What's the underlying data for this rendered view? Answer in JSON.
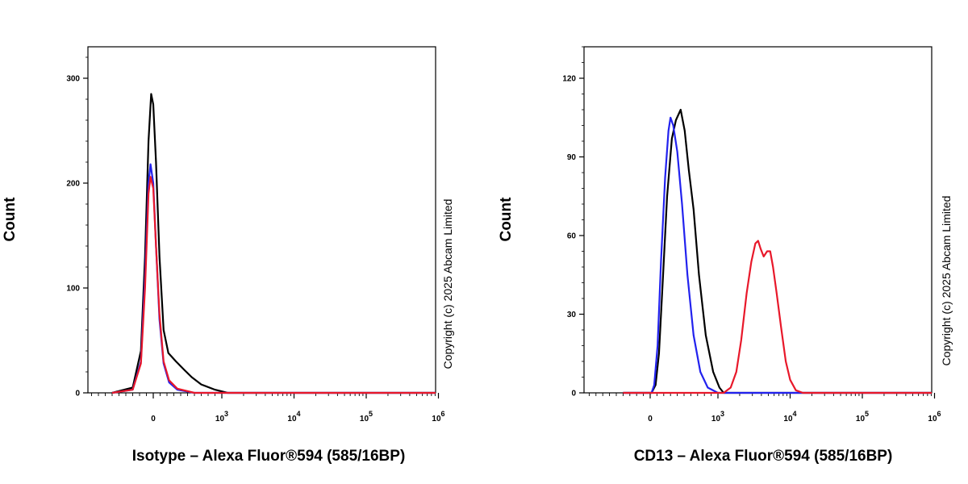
{
  "chart_data": [
    {
      "type": "line",
      "xlabel": "Isotype  – Alexa Fluor®594 (585/16BP)",
      "ylabel": "Count",
      "copyright": "Copyright (c) 2025 Abcam Limited",
      "x_scale": "biexponential",
      "y_ticks": [
        0,
        100,
        200,
        300
      ],
      "ylim": [
        0,
        330
      ],
      "x_tick_labels": [
        {
          "value": 0,
          "label": "0"
        },
        {
          "value": 1000,
          "label": "10",
          "exp": "3"
        },
        {
          "value": 10000,
          "label": "10",
          "exp": "4"
        },
        {
          "value": 100000,
          "label": "10",
          "exp": "5"
        },
        {
          "value": 1000000,
          "label": "10",
          "exp": "6"
        }
      ],
      "grid": false,
      "series": [
        {
          "color": "#000000",
          "points": [
            [
              -600,
              0
            ],
            [
              -300,
              5
            ],
            [
              -180,
              40
            ],
            [
              -120,
              130
            ],
            [
              -70,
              240
            ],
            [
              -30,
              285
            ],
            [
              0,
              275
            ],
            [
              40,
              220
            ],
            [
              90,
              130
            ],
            [
              150,
              60
            ],
            [
              220,
              38
            ],
            [
              330,
              30
            ],
            [
              450,
              22
            ],
            [
              560,
              15
            ],
            [
              700,
              8
            ],
            [
              900,
              3
            ],
            [
              1200,
              0
            ],
            [
              1000000,
              0
            ]
          ]
        },
        {
          "color": "#2222ee",
          "points": [
            [
              -600,
              0
            ],
            [
              -300,
              3
            ],
            [
              -180,
              30
            ],
            [
              -120,
              110
            ],
            [
              -70,
              200
            ],
            [
              -40,
              218
            ],
            [
              0,
              200
            ],
            [
              40,
              140
            ],
            [
              90,
              70
            ],
            [
              150,
              28
            ],
            [
              230,
              10
            ],
            [
              350,
              3
            ],
            [
              600,
              0
            ],
            [
              1000000,
              0
            ]
          ]
        },
        {
          "color": "#e8182a",
          "points": [
            [
              -600,
              0
            ],
            [
              -300,
              3
            ],
            [
              -180,
              28
            ],
            [
              -120,
              100
            ],
            [
              -70,
              190
            ],
            [
              -40,
              206
            ],
            [
              0,
              195
            ],
            [
              40,
              140
            ],
            [
              90,
              75
            ],
            [
              150,
              30
            ],
            [
              230,
              12
            ],
            [
              350,
              4
            ],
            [
              600,
              0
            ],
            [
              1000000,
              0
            ]
          ]
        }
      ]
    },
    {
      "type": "line",
      "xlabel": "CD13 – Alexa Fluor®594 (585/16BP)",
      "ylabel": "Count",
      "copyright": "Copyright (c) 2025 Abcam Limited",
      "x_scale": "biexponential",
      "y_ticks": [
        0,
        30,
        60,
        90,
        120
      ],
      "ylim": [
        0,
        132
      ],
      "x_tick_labels": [
        {
          "value": 0,
          "label": "0"
        },
        {
          "value": 1000,
          "label": "10",
          "exp": "3"
        },
        {
          "value": 10000,
          "label": "10",
          "exp": "4"
        },
        {
          "value": 100000,
          "label": "10",
          "exp": "5"
        },
        {
          "value": 1000000,
          "label": "10",
          "exp": "6"
        }
      ],
      "grid": false,
      "series": [
        {
          "color": "#000000",
          "points": [
            [
              -400,
              0
            ],
            [
              -100,
              0
            ],
            [
              20,
              0
            ],
            [
              80,
              3
            ],
            [
              130,
              15
            ],
            [
              190,
              45
            ],
            [
              250,
              75
            ],
            [
              320,
              97
            ],
            [
              380,
              104
            ],
            [
              450,
              108
            ],
            [
              510,
              100
            ],
            [
              570,
              85
            ],
            [
              640,
              70
            ],
            [
              720,
              45
            ],
            [
              820,
              22
            ],
            [
              930,
              8
            ],
            [
              1050,
              2
            ],
            [
              1200,
              0
            ],
            [
              1000000,
              0
            ]
          ]
        },
        {
          "color": "#2222ee",
          "points": [
            [
              -400,
              0
            ],
            [
              -100,
              0
            ],
            [
              20,
              0
            ],
            [
              60,
              3
            ],
            [
              110,
              18
            ],
            [
              160,
              50
            ],
            [
              220,
              82
            ],
            [
              270,
              100
            ],
            [
              300,
              105
            ],
            [
              340,
              102
            ],
            [
              400,
              92
            ],
            [
              470,
              72
            ],
            [
              550,
              45
            ],
            [
              640,
              22
            ],
            [
              740,
              8
            ],
            [
              850,
              2
            ],
            [
              1000,
              0
            ],
            [
              1000000,
              0
            ]
          ]
        },
        {
          "color": "#e8182a",
          "points": [
            [
              -400,
              0
            ],
            [
              1200,
              0
            ],
            [
              1500,
              2
            ],
            [
              1800,
              8
            ],
            [
              2100,
              20
            ],
            [
              2500,
              38
            ],
            [
              2900,
              50
            ],
            [
              3300,
              57
            ],
            [
              3600,
              58
            ],
            [
              3900,
              55
            ],
            [
              4300,
              52
            ],
            [
              4800,
              54
            ],
            [
              5300,
              54
            ],
            [
              5800,
              48
            ],
            [
              6500,
              38
            ],
            [
              7500,
              25
            ],
            [
              8700,
              12
            ],
            [
              10000,
              5
            ],
            [
              12000,
              1
            ],
            [
              15000,
              0
            ],
            [
              1000000,
              0
            ]
          ]
        }
      ]
    }
  ]
}
